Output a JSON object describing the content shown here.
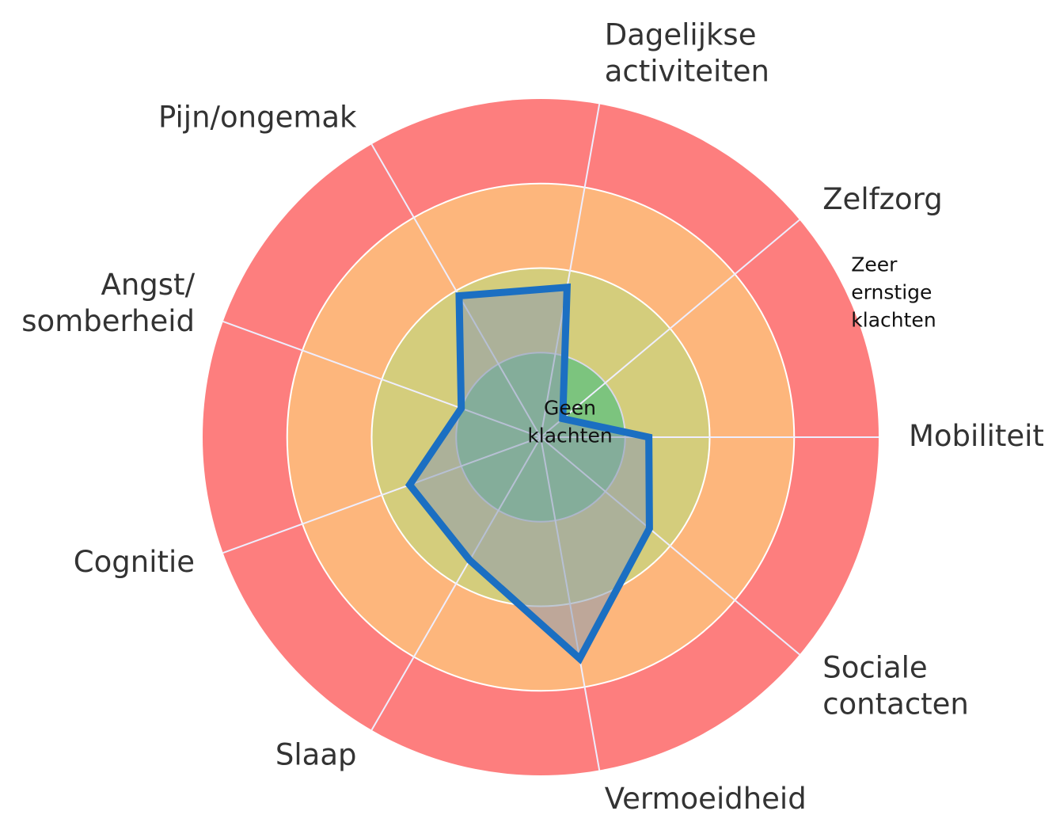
{
  "chart_data": {
    "type": "radar",
    "categories": [
      "Mobiliteit",
      "Zelfzorg",
      "Dagelijkse activiteiten",
      "Pijn/ongemak",
      "Angst/ somberheid",
      "Cognitie",
      "Slaap",
      "Vermoeidheid",
      "Sociale contacten"
    ],
    "series": [
      {
        "color": "#1b6fc2",
        "values": [
          1.28,
          0.34,
          1.8,
          1.93,
          1.0,
          1.65,
          1.68,
          2.66,
          1.68
        ]
      }
    ],
    "bands": [
      {
        "from": 0,
        "to": 1,
        "color": "#7cc47e"
      },
      {
        "from": 1,
        "to": 2,
        "color": "#d4cd7c"
      },
      {
        "from": 2,
        "to": 3,
        "color": "#fdb67c"
      },
      {
        "from": 3,
        "to": 4,
        "color": "#fd7e7e"
      }
    ],
    "rlim": [
      0,
      4
    ],
    "rticks": [
      {
        "value": 0,
        "label": "Geen klachten"
      },
      1,
      2,
      3,
      {
        "value": 4,
        "label": "Zeer ernstige klachten"
      }
    ],
    "grid": true
  }
}
